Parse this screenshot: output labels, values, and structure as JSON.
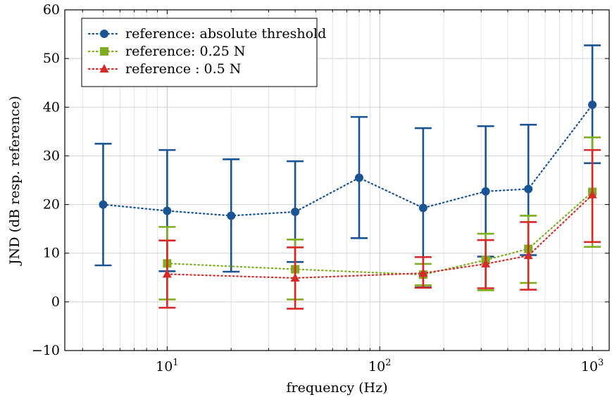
{
  "chart_data": {
    "type": "line",
    "xlabel": "frequency (Hz)",
    "ylabel": "JND (dB resp. reference)",
    "xscale": "log",
    "xlim": [
      3.3,
      1200
    ],
    "ylim": [
      -10,
      60
    ],
    "yticks": [
      -10,
      0,
      10,
      20,
      30,
      40,
      50,
      60
    ],
    "xticks": [
      {
        "value": 10,
        "base": "10",
        "exp": "1"
      },
      {
        "value": 100,
        "base": "10",
        "exp": "2"
      },
      {
        "value": 1000,
        "base": "10",
        "exp": "3"
      }
    ],
    "grid": true,
    "legend_position": "top-left",
    "series": [
      {
        "name": "reference: absolute threshold",
        "color": "#1a5493",
        "marker": "circle",
        "x": [
          5,
          10,
          20,
          40,
          80,
          160,
          315,
          500,
          1000
        ],
        "y": [
          20.0,
          18.7,
          17.7,
          18.5,
          25.5,
          19.3,
          22.7,
          23.2,
          40.5
        ],
        "err_low": [
          7.5,
          6.3,
          6.2,
          8.2,
          13.1,
          3.0,
          9.3,
          9.6,
          28.5
        ],
        "err_high": [
          32.5,
          31.2,
          29.3,
          28.9,
          38.0,
          35.7,
          36.1,
          36.4,
          52.7
        ]
      },
      {
        "name": "reference: 0.25 N",
        "color": "#7fad1f",
        "marker": "square",
        "x": [
          10,
          40,
          160,
          315,
          500,
          1000
        ],
        "y": [
          7.9,
          6.7,
          5.6,
          8.6,
          10.9,
          22.6
        ],
        "err_low": [
          0.5,
          0.5,
          3.4,
          2.4,
          3.9,
          11.3
        ],
        "err_high": [
          15.4,
          12.8,
          7.8,
          14.0,
          17.7,
          33.8
        ]
      },
      {
        "name": "reference : 0.5 N",
        "color": "#d62a2a",
        "marker": "triangle",
        "x": [
          10,
          40,
          160,
          315,
          500,
          1000
        ],
        "y": [
          5.7,
          4.9,
          5.9,
          7.8,
          9.5,
          22.0
        ],
        "err_low": [
          -1.2,
          -1.4,
          2.9,
          2.8,
          2.5,
          12.3
        ],
        "err_high": [
          12.6,
          11.2,
          9.2,
          12.7,
          16.4,
          31.2
        ]
      }
    ]
  }
}
